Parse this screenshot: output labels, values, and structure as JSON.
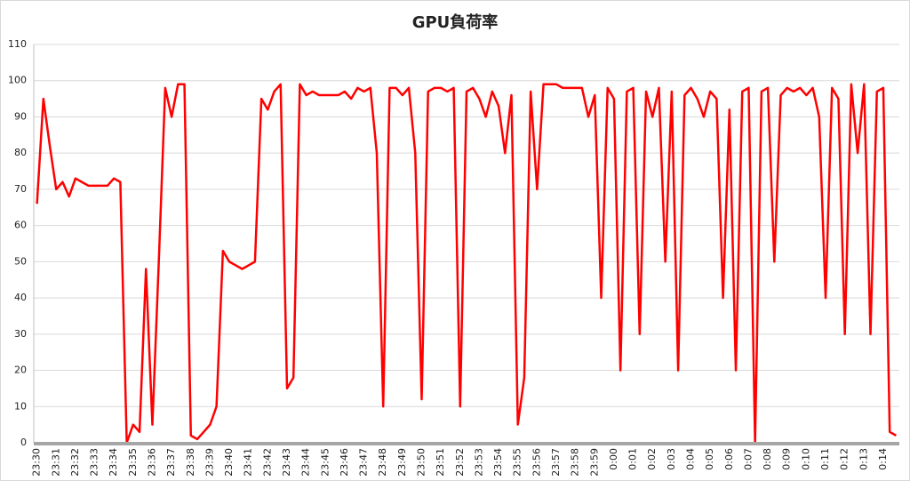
{
  "chart_data": {
    "type": "line",
    "title": "GPU負荷率",
    "categories": [
      "23:30",
      null,
      null,
      "23:31",
      null,
      null,
      "23:32",
      null,
      null,
      "23:33",
      null,
      null,
      "23:34",
      null,
      null,
      "23:35",
      null,
      null,
      "23:36",
      null,
      null,
      "23:37",
      null,
      null,
      "23:38",
      null,
      null,
      "23:39",
      null,
      null,
      "23:40",
      null,
      null,
      "23:41",
      null,
      null,
      "23:42",
      null,
      null,
      "23:43",
      null,
      null,
      "23:44",
      null,
      null,
      "23:45",
      null,
      null,
      "23:46",
      null,
      null,
      "23:47",
      null,
      null,
      "23:48",
      null,
      null,
      "23:49",
      null,
      null,
      "23:50",
      null,
      null,
      "23:51",
      null,
      null,
      "23:52",
      null,
      null,
      "23:53",
      null,
      null,
      "23:54",
      null,
      null,
      "23:55",
      null,
      null,
      "23:56",
      null,
      null,
      "23:57",
      null,
      null,
      "23:58",
      null,
      null,
      "23:59",
      null,
      null,
      "0:00",
      null,
      null,
      "0:01",
      null,
      null,
      "0:02",
      null,
      null,
      "0:03",
      null,
      null,
      "0:04",
      null,
      null,
      "0:05",
      null,
      null,
      "0:06",
      null,
      null,
      "0:07",
      null,
      null,
      "0:08",
      null,
      null,
      "0:09",
      null,
      null,
      "0:10",
      null,
      null,
      "0:11",
      null,
      null,
      "0:12",
      null,
      null,
      "0:13",
      null,
      null,
      "0:14",
      null,
      null
    ],
    "values": [
      66,
      95,
      82,
      70,
      72,
      68,
      73,
      72,
      71,
      71,
      71,
      71,
      73,
      72,
      0,
      5,
      3,
      48,
      5,
      50,
      98,
      90,
      99,
      99,
      2,
      1,
      3,
      5,
      10,
      53,
      50,
      49,
      48,
      49,
      50,
      95,
      92,
      97,
      99,
      15,
      18,
      99,
      96,
      97,
      96,
      96,
      96,
      96,
      97,
      95,
      98,
      97,
      98,
      80,
      10,
      98,
      98,
      96,
      98,
      80,
      12,
      97,
      98,
      98,
      97,
      98,
      10,
      97,
      98,
      95,
      90,
      97,
      93,
      80,
      96,
      5,
      18,
      97,
      70,
      99,
      99,
      99,
      98,
      98,
      98,
      98,
      90,
      96,
      40,
      98,
      95,
      20,
      97,
      98,
      30,
      97,
      90,
      98,
      50,
      97,
      20,
      96,
      98,
      95,
      90,
      97,
      95,
      40,
      92,
      20,
      97,
      98,
      0,
      97,
      98,
      50,
      96,
      98,
      97,
      98,
      96,
      98,
      90,
      40,
      98,
      95,
      30,
      99,
      80,
      99,
      30,
      97,
      98,
      3,
      2
    ],
    "color": "#ff0000",
    "ylim": [
      0,
      110
    ],
    "yticks": [
      0,
      10,
      20,
      30,
      40,
      50,
      60,
      70,
      80,
      90,
      100,
      110
    ],
    "grid": true
  }
}
